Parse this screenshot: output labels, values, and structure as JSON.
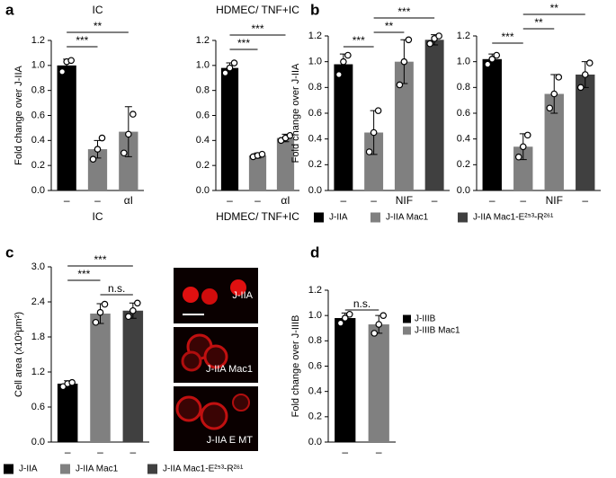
{
  "chart_data": [
    {
      "type": "bar",
      "panel": "a",
      "title": "IC",
      "ylabel": "Fold change over J-IIA",
      "xlabel": "IC",
      "categories": [
        "–",
        "–",
        "αI"
      ],
      "values": [
        1.0,
        0.33,
        0.47
      ],
      "errors": [
        0.05,
        0.07,
        0.2
      ],
      "points": [
        [
          0.95,
          1.03,
          1.04
        ],
        [
          0.25,
          0.33,
          0.42
        ],
        [
          0.3,
          0.45,
          0.61
        ]
      ],
      "colors": [
        "#000000",
        "#808080",
        "#808080"
      ],
      "ylim": [
        0,
        1.2
      ],
      "yticks": [
        {
          "value": 0,
          "label": "0.0"
        },
        {
          "value": 0.2,
          "label": "0.2"
        },
        {
          "value": 0.4,
          "label": "0.4"
        },
        {
          "value": 0.6,
          "label": "0.6"
        },
        {
          "value": 0.8,
          "label": "0.8"
        },
        {
          "value": 1.0,
          "label": "1.0"
        },
        {
          "value": 1.2,
          "label": "1.2"
        }
      ],
      "annotations": [
        {
          "text": "***",
          "span": [
            0,
            1
          ]
        },
        {
          "text": "**",
          "span": [
            0,
            2
          ]
        }
      ]
    },
    {
      "type": "bar",
      "title": "HDMEC/ TNF+IC",
      "xlabel": "HDMEC/ TNF+IC",
      "categories": [
        "–",
        "–",
        "αI"
      ],
      "values": [
        0.98,
        0.28,
        0.42
      ],
      "errors": [
        0.04,
        0.02,
        0.03
      ],
      "points": [
        [
          0.94,
          0.98,
          1.02
        ],
        [
          0.27,
          0.28,
          0.29
        ],
        [
          0.4,
          0.42,
          0.44
        ]
      ],
      "colors": [
        "#000000",
        "#808080",
        "#808080"
      ],
      "ylim": [
        0,
        1.2
      ],
      "yticks": [
        {
          "value": 0,
          "label": "0.0"
        },
        {
          "value": 0.2,
          "label": "0.2"
        },
        {
          "value": 0.4,
          "label": "0.4"
        },
        {
          "value": 0.6,
          "label": "0.6"
        },
        {
          "value": 0.8,
          "label": "0.8"
        },
        {
          "value": 1.0,
          "label": "1.0"
        },
        {
          "value": 1.2,
          "label": "1.2"
        }
      ],
      "annotations": [
        {
          "text": "***",
          "span": [
            0,
            1
          ]
        },
        {
          "text": "***",
          "span": [
            0,
            2
          ]
        }
      ]
    },
    {
      "type": "bar",
      "panel": "b",
      "ylabel": "Fold change over J-IIA",
      "categories": [
        "–",
        "–",
        "NIF",
        "–"
      ],
      "values": [
        0.98,
        0.45,
        1.0,
        1.17
      ],
      "errors": [
        0.08,
        0.17,
        0.17,
        0.04
      ],
      "points": [
        [
          0.9,
          1.0,
          1.05
        ],
        [
          0.3,
          0.45,
          0.62
        ],
        [
          0.82,
          1.0,
          1.17
        ],
        [
          1.14,
          1.18,
          1.2
        ]
      ],
      "colors": [
        "#000000",
        "#808080",
        "#808080",
        "#404040"
      ],
      "ylim": [
        0,
        1.2
      ],
      "yticks": [
        {
          "value": 0,
          "label": "0.0"
        },
        {
          "value": 0.2,
          "label": "0.2"
        },
        {
          "value": 0.4,
          "label": "0.4"
        },
        {
          "value": 0.6,
          "label": "0.6"
        },
        {
          "value": 0.8,
          "label": "0.8"
        },
        {
          "value": 1.0,
          "label": "1.0"
        },
        {
          "value": 1.2,
          "label": "1.2"
        }
      ],
      "annotations": [
        {
          "text": "***",
          "span": [
            0,
            1
          ]
        },
        {
          "text": "**",
          "span": [
            1,
            2
          ]
        },
        {
          "text": "***",
          "span": [
            1,
            3
          ]
        }
      ],
      "legend": [
        {
          "name": "J-IIA",
          "color": "#000000"
        },
        {
          "name": "J-IIA Mac1",
          "color": "#808080"
        },
        {
          "name": "J-IIA Mac1-E²⁵³-R²⁶¹",
          "color": "#404040"
        }
      ]
    },
    {
      "type": "bar",
      "categories": [
        "–",
        "–",
        "NIF",
        "–"
      ],
      "values": [
        1.02,
        0.34,
        0.75,
        0.9
      ],
      "errors": [
        0.04,
        0.1,
        0.15,
        0.1
      ],
      "points": [
        [
          0.98,
          1.02,
          1.05
        ],
        [
          0.26,
          0.34,
          0.43
        ],
        [
          0.64,
          0.75,
          0.88
        ],
        [
          0.8,
          0.9,
          0.99
        ]
      ],
      "colors": [
        "#000000",
        "#808080",
        "#808080",
        "#404040"
      ],
      "ylim": [
        0,
        1.2
      ],
      "yticks": [
        {
          "value": 0,
          "label": "0.0"
        },
        {
          "value": 0.2,
          "label": "0.2"
        },
        {
          "value": 0.4,
          "label": "0.4"
        },
        {
          "value": 0.6,
          "label": "0.6"
        },
        {
          "value": 0.8,
          "label": "0.8"
        },
        {
          "value": 1.0,
          "label": "1.0"
        },
        {
          "value": 1.2,
          "label": "1.2"
        }
      ],
      "annotations": [
        {
          "text": "***",
          "span": [
            0,
            1
          ]
        },
        {
          "text": "**",
          "span": [
            1,
            2
          ]
        },
        {
          "text": "**",
          "span": [
            1,
            3
          ]
        }
      ]
    },
    {
      "type": "bar",
      "panel": "c",
      "ylabel": "Cell area (x10²μm²)",
      "categories": [
        "–",
        "–",
        "–"
      ],
      "values": [
        1.0,
        2.2,
        2.25
      ],
      "errors": [
        0.05,
        0.17,
        0.13
      ],
      "points": [
        [
          0.95,
          1.0,
          1.02
        ],
        [
          2.05,
          2.22,
          2.36
        ],
        [
          2.15,
          2.25,
          2.38
        ]
      ],
      "colors": [
        "#000000",
        "#808080",
        "#404040"
      ],
      "ylim": [
        0,
        3.0
      ],
      "yticks": [
        {
          "value": 0,
          "label": "0.0"
        },
        {
          "value": 0.6,
          "label": "0.6"
        },
        {
          "value": 1.2,
          "label": "1.2"
        },
        {
          "value": 1.8,
          "label": "1.8"
        },
        {
          "value": 2.4,
          "label": "2.4"
        },
        {
          "value": 3.0,
          "label": "3.0"
        }
      ],
      "annotations": [
        {
          "text": "n.s.",
          "span": [
            1,
            2
          ]
        },
        {
          "text": "***",
          "span": [
            0,
            1
          ]
        },
        {
          "text": "***",
          "span": [
            0,
            2
          ]
        }
      ],
      "images": [
        "J-IIA",
        "J-IIA Mac1",
        "J-IIA E MT"
      ],
      "legend": [
        {
          "name": "J-IIA",
          "color": "#000000"
        },
        {
          "name": "J-IIA Mac1",
          "color": "#808080"
        },
        {
          "name": "J-IIA Mac1-E²⁵³-R²⁶¹",
          "color": "#404040"
        }
      ]
    },
    {
      "type": "bar",
      "panel": "d",
      "ylabel": "Fold change over J-IIIB",
      "categories": [
        "–",
        "–"
      ],
      "values": [
        0.98,
        0.93
      ],
      "errors": [
        0.04,
        0.07
      ],
      "points": [
        [
          0.94,
          0.98,
          1.01
        ],
        [
          0.86,
          0.93,
          1.0
        ]
      ],
      "colors": [
        "#000000",
        "#808080"
      ],
      "ylim": [
        0,
        1.2
      ],
      "yticks": [
        {
          "value": 0,
          "label": "0.0"
        },
        {
          "value": 0.2,
          "label": "0.2"
        },
        {
          "value": 0.4,
          "label": "0.4"
        },
        {
          "value": 0.6,
          "label": "0.6"
        },
        {
          "value": 0.8,
          "label": "0.8"
        },
        {
          "value": 1.0,
          "label": "1.0"
        },
        {
          "value": 1.2,
          "label": "1.2"
        }
      ],
      "annotations": [
        {
          "text": "n.s.",
          "span": [
            0,
            1
          ]
        }
      ],
      "legend": [
        {
          "name": "J-IIIB",
          "color": "#000000"
        },
        {
          "name": "J-IIIB Mac1",
          "color": "#808080"
        }
      ]
    }
  ]
}
